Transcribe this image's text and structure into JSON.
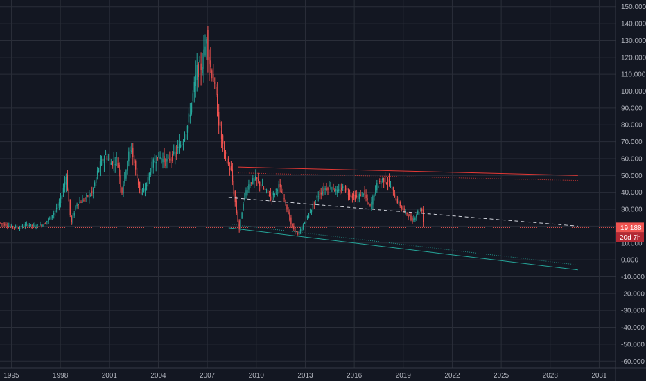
{
  "colors": {
    "background": "#131722",
    "grid": "#2a2e39",
    "up": "#26a69a",
    "down": "#ef5350",
    "text": "#b2b5be",
    "resistance": "#e53935",
    "support": "#26a69a",
    "midline": "#d1d4dc",
    "price_line": "#ef5350"
  },
  "price_badge": {
    "price": "19.188",
    "countdown": "20d 7h"
  },
  "chart_data": {
    "type": "candlestick",
    "title": "",
    "xlabel": "",
    "ylabel": "",
    "grid": true,
    "xlim": [
      1994.3,
      2032.0
    ],
    "ylim": [
      -64,
      154
    ],
    "x_ticks": [
      1995,
      1998,
      2001,
      2004,
      2007,
      2010,
      2013,
      2016,
      2019,
      2022,
      2025,
      2028,
      2031
    ],
    "x_tick_labels": [
      "1995",
      "1998",
      "2001",
      "2004",
      "2007",
      "2010",
      "2013",
      "2016",
      "2019",
      "2022",
      "2025",
      "2028",
      "2031"
    ],
    "y_ticks": [
      150,
      140,
      130,
      120,
      110,
      100,
      90,
      80,
      70,
      60,
      50,
      40,
      30,
      20,
      10,
      0,
      -10,
      -20,
      -30,
      -40,
      -50,
      -60
    ],
    "y_tick_labels": [
      "150.000",
      "140.000",
      "130.000",
      "120.000",
      "110.000",
      "100.000",
      "90.000",
      "80.000",
      "70.000",
      "60.000",
      "50.000",
      "40.000",
      "30.000",
      "20.000",
      "10.000",
      "0.000",
      "-10.000",
      "-20.000",
      "-30.000",
      "-40.000",
      "-50.000",
      "-60.000"
    ],
    "price_path": [
      [
        1994.3,
        22
      ],
      [
        1995.0,
        20
      ],
      [
        1995.5,
        19
      ],
      [
        1996.0,
        21
      ],
      [
        1996.5,
        20
      ],
      [
        1997.0,
        21
      ],
      [
        1997.5,
        26
      ],
      [
        1998.0,
        34
      ],
      [
        1998.4,
        50
      ],
      [
        1998.7,
        21
      ],
      [
        1999.0,
        33
      ],
      [
        1999.5,
        36
      ],
      [
        2000.0,
        40
      ],
      [
        2000.4,
        55
      ],
      [
        2000.8,
        62
      ],
      [
        2001.2,
        57
      ],
      [
        2001.5,
        60
      ],
      [
        2001.8,
        40
      ],
      [
        2002.2,
        62
      ],
      [
        2002.4,
        66
      ],
      [
        2002.7,
        50
      ],
      [
        2003.0,
        38
      ],
      [
        2003.3,
        44
      ],
      [
        2003.6,
        55
      ],
      [
        2004.0,
        62
      ],
      [
        2004.5,
        58
      ],
      [
        2005.0,
        62
      ],
      [
        2005.5,
        70
      ],
      [
        2005.8,
        78
      ],
      [
        2006.2,
        100
      ],
      [
        2006.4,
        112
      ],
      [
        2006.7,
        115
      ],
      [
        2006.9,
        125
      ],
      [
        2007.0,
        135
      ],
      [
        2007.1,
        120
      ],
      [
        2007.4,
        108
      ],
      [
        2007.8,
        78
      ],
      [
        2008.1,
        62
      ],
      [
        2008.5,
        52
      ],
      [
        2008.8,
        30
      ],
      [
        2009.0,
        18
      ],
      [
        2009.3,
        38
      ],
      [
        2009.6,
        45
      ],
      [
        2010.0,
        48
      ],
      [
        2010.5,
        42
      ],
      [
        2011.0,
        37
      ],
      [
        2011.4,
        44
      ],
      [
        2011.8,
        35
      ],
      [
        2012.2,
        20
      ],
      [
        2012.6,
        15
      ],
      [
        2013.0,
        22
      ],
      [
        2013.4,
        30
      ],
      [
        2013.8,
        38
      ],
      [
        2014.2,
        42
      ],
      [
        2014.6,
        44
      ],
      [
        2015.0,
        40
      ],
      [
        2015.4,
        43
      ],
      [
        2015.8,
        38
      ],
      [
        2016.2,
        37
      ],
      [
        2016.6,
        40
      ],
      [
        2017.0,
        31
      ],
      [
        2017.4,
        44
      ],
      [
        2017.8,
        48
      ],
      [
        2018.2,
        45
      ],
      [
        2018.6,
        36
      ],
      [
        2019.0,
        30
      ],
      [
        2019.3,
        27
      ],
      [
        2019.6,
        23
      ],
      [
        2019.9,
        28
      ],
      [
        2020.2,
        30
      ],
      [
        2020.3,
        19.188
      ]
    ],
    "trendlines": [
      {
        "role": "resistance-upper",
        "style": "solid",
        "color": "#e53935",
        "points": [
          [
            2008.9,
            55
          ],
          [
            2029.7,
            50
          ]
        ]
      },
      {
        "role": "resistance-lower",
        "style": "dotted",
        "color": "#e53935",
        "points": [
          [
            2008.9,
            51.5
          ],
          [
            2029.7,
            47
          ]
        ]
      },
      {
        "role": "midline",
        "style": "dashed",
        "color": "#d1d4dc",
        "points": [
          [
            2008.3,
            37
          ],
          [
            2029.7,
            20
          ]
        ]
      },
      {
        "role": "support-lower",
        "style": "solid",
        "color": "#26a69a",
        "points": [
          [
            2008.3,
            19
          ],
          [
            2029.7,
            -6
          ]
        ]
      },
      {
        "role": "support-upper",
        "style": "dotted",
        "color": "#26a69a",
        "points": [
          [
            2008.5,
            21
          ],
          [
            2029.7,
            -3
          ]
        ]
      }
    ],
    "current_price": 19.188
  }
}
